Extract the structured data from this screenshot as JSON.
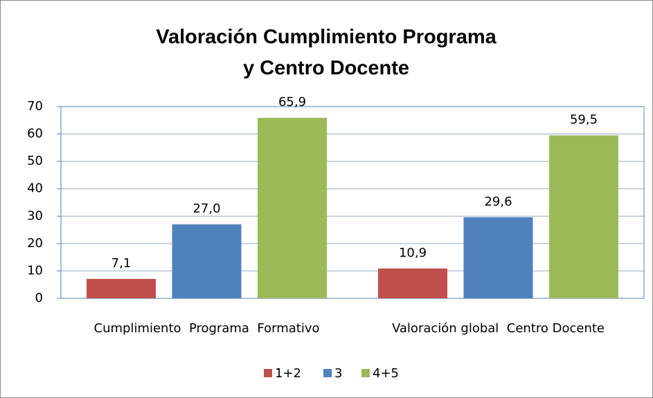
{
  "chart_data": {
    "type": "bar",
    "title": [
      "Valoración Cumplimiento Programa",
      "y Centro Docente"
    ],
    "categories": [
      "Cumplimiento  Programa  Formativo",
      "Valoración global  Centro Docente"
    ],
    "series": [
      {
        "name": "1+2",
        "color": "#c0504d",
        "values": [
          7.1,
          10.9
        ],
        "value_labels": [
          "7,1",
          "10,9"
        ]
      },
      {
        "name": "3",
        "color": "#4f81bd",
        "values": [
          27.0,
          29.6
        ],
        "value_labels": [
          "27,0",
          "29,6"
        ]
      },
      {
        "name": "4+5",
        "color": "#9bbb59",
        "values": [
          65.9,
          59.5
        ],
        "value_labels": [
          "65,9",
          "59,5"
        ]
      }
    ],
    "ylim": [
      0,
      70
    ],
    "yticks": [
      0,
      10,
      20,
      30,
      40,
      50,
      60,
      70
    ],
    "grid": true,
    "legend": "bottom"
  }
}
